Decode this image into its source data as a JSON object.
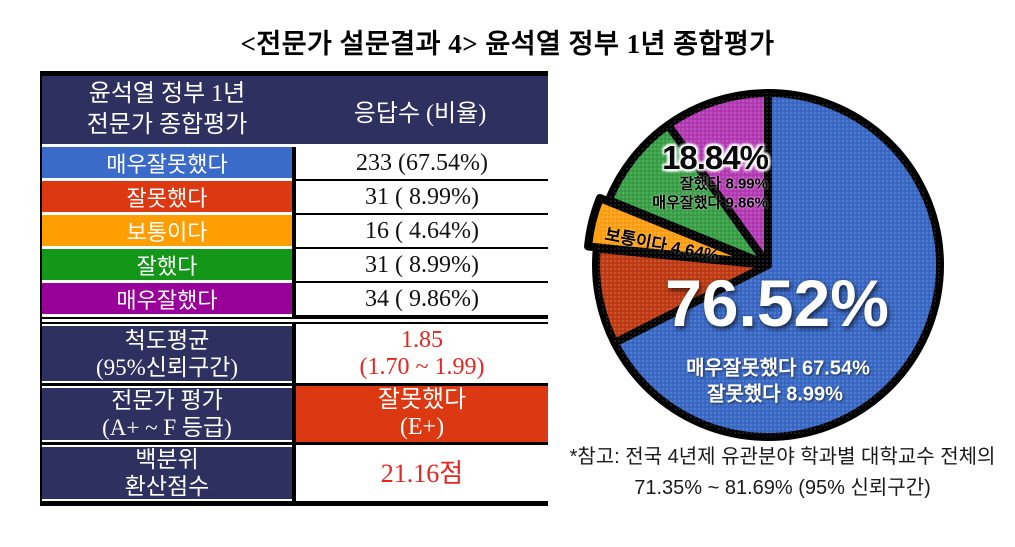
{
  "title": "<전문가 설문결과 4> 윤석열 정부 1년 종합평가",
  "colors": {
    "navy": "#2E3060",
    "table_blue": "#3A6BC8",
    "table_red": "#DC3912",
    "table_orange": "#FF9E01",
    "table_green": "#149719",
    "table_purple": "#990099",
    "value_red_text": "#E52620",
    "grade_cell_bg": "#DC3912"
  },
  "table": {
    "header": {
      "label_line1": "윤석열 정부 1년",
      "label_line2": "전문가 종합평가",
      "value": "응답수 (비율)"
    },
    "rows": [
      {
        "label": "매우잘못했다",
        "value": "233 (67.54%)",
        "color": "#3A6BC8"
      },
      {
        "label": "잘못했다",
        "value": "31 ( 8.99%)",
        "color": "#DC3912"
      },
      {
        "label": "보통이다",
        "value": "16 ( 4.64%)",
        "color": "#FF9E01"
      },
      {
        "label": "잘했다",
        "value": "31 ( 8.99%)",
        "color": "#149719"
      },
      {
        "label": "매우잘했다",
        "value": "34 ( 9.86%)",
        "color": "#990099"
      }
    ],
    "summary_rows": [
      {
        "label_line1": "척도평균",
        "label_line2": "(95%신뢰구간)",
        "value_line1": "1.85",
        "value_line2": "(1.70 ~ 1.99)"
      },
      {
        "label_line1": "전문가 평가",
        "label_line2": "(A+ ~ F 등급)",
        "value_line1": "잘못했다",
        "value_line2": "(E+)"
      },
      {
        "label_line1": "백분위",
        "label_line2": "환산점수",
        "value_line1": "21.16점",
        "value_line2": ""
      }
    ]
  },
  "chart_data": {
    "type": "pie",
    "title": "윤석열 정부 1년 전문가 종합평가",
    "categories": [
      "매우잘못했다",
      "잘못했다",
      "보통이다",
      "잘했다",
      "매우잘했다"
    ],
    "values": [
      67.54,
      8.99,
      4.64,
      8.99,
      9.86
    ],
    "counts": [
      233,
      31,
      16,
      31,
      34
    ],
    "colors": [
      "#3A69C6",
      "#C13C14",
      "#FFA014",
      "#3AA047",
      "#B53AB5"
    ],
    "exploded": [
      false,
      false,
      true,
      false,
      false
    ],
    "start_angle": "12-oclock",
    "direction": "clockwise",
    "legend_position": "none",
    "annotations": {
      "negative_total": "76.52%",
      "negative_line1": "매우잘못했다 67.54%",
      "negative_line2": "잘못했다 8.99%",
      "positive_total": "18.84%",
      "positive_line1": "잘했다 8.99%",
      "positive_line2": "매우잘했다 9.86%",
      "neutral_label": "보통이다 4.64%"
    }
  },
  "note": {
    "line1": "*참고: 전국 4년제 유관분야 학과별 대학교수 전체의",
    "line2": "71.35% ~ 81.69% (95% 신뢰구간)"
  }
}
